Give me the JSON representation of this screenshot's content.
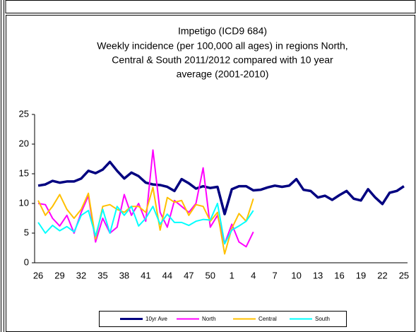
{
  "chart_data": {
    "type": "line",
    "title": "Impetigo (ICD9 684)",
    "subtitle": [
      "Weekly incidence (per 100,000 all ages) in regions North,",
      "Central & South 2011/2012 compared with 10 year",
      "average (2001-2010)"
    ],
    "categories": [
      26,
      null,
      null,
      29,
      null,
      null,
      32,
      null,
      null,
      35,
      null,
      null,
      38,
      null,
      null,
      41,
      null,
      null,
      44,
      null,
      null,
      47,
      null,
      null,
      50,
      null,
      null,
      1,
      null,
      null,
      4,
      null,
      null,
      7,
      null,
      null,
      10,
      null,
      null,
      13,
      null,
      null,
      16,
      null,
      null,
      19,
      null,
      null,
      22,
      null,
      null,
      25
    ],
    "ylim": [
      0,
      25
    ],
    "yticks": [
      0,
      5,
      10,
      15,
      20,
      25
    ],
    "grid": false,
    "legend": "bottom",
    "series": [
      {
        "name": "10yr Ave",
        "color": "#000080",
        "values": [
          13.0,
          13.2,
          13.8,
          13.5,
          13.7,
          13.7,
          14.2,
          15.5,
          15.1,
          15.7,
          17.0,
          15.5,
          14.2,
          15.2,
          14.6,
          13.5,
          13.2,
          13.1,
          12.8,
          12.1,
          14.1,
          13.4,
          12.5,
          12.9,
          12.6,
          12.8,
          8.2,
          12.4,
          12.9,
          12.9,
          12.2,
          12.3,
          12.7,
          13.0,
          12.8,
          13.0,
          14.1,
          12.3,
          12.1,
          11.0,
          11.3,
          10.6,
          11.4,
          12.1,
          10.8,
          10.5,
          12.4,
          11.0,
          9.9,
          11.8,
          12.1,
          12.9
        ]
      },
      {
        "name": "North",
        "color": "#ff00ff",
        "values": [
          10.0,
          9.8,
          7.5,
          6.2,
          8.0,
          5.0,
          8.5,
          11.3,
          3.5,
          7.5,
          5.0,
          6.0,
          11.5,
          8.0,
          10.0,
          7.0,
          19.0,
          8.5,
          6.0,
          10.5,
          9.5,
          8.5,
          10.0,
          16.0,
          6.0,
          8.0,
          3.2,
          6.5,
          3.5,
          2.7,
          5.2,
          null,
          null,
          null,
          null,
          null,
          null,
          null,
          null,
          null,
          null,
          null,
          null,
          null,
          null,
          null,
          null,
          null,
          null,
          null,
          null,
          null
        ]
      },
      {
        "name": "Central",
        "color": "#ffc000",
        "values": [
          10.5,
          8.0,
          9.5,
          11.5,
          9.0,
          7.5,
          9.0,
          11.7,
          4.0,
          9.5,
          9.8,
          9.0,
          8.5,
          9.5,
          9.5,
          8.5,
          12.7,
          5.5,
          11.0,
          10.2,
          10.5,
          8.0,
          9.8,
          9.5,
          7.0,
          8.5,
          1.5,
          5.8,
          8.3,
          7.0,
          10.8,
          null,
          null,
          null,
          null,
          null,
          null,
          null,
          null,
          null,
          null,
          null,
          null,
          null,
          null,
          null,
          null,
          null,
          null,
          null,
          null,
          null
        ]
      },
      {
        "name": "South",
        "color": "#00ffff",
        "values": [
          6.8,
          5.0,
          6.3,
          5.4,
          6.1,
          5.2,
          8.0,
          8.8,
          4.5,
          9.0,
          5.0,
          9.5,
          8.0,
          9.5,
          6.2,
          7.5,
          9.5,
          6.5,
          8.2,
          6.8,
          6.8,
          6.3,
          7.0,
          7.3,
          7.2,
          10.0,
          3.2,
          5.5,
          6.2,
          7.0,
          8.8,
          null,
          null,
          null,
          null,
          null,
          null,
          null,
          null,
          null,
          null,
          null,
          null,
          null,
          null,
          null,
          null,
          null,
          null,
          null,
          null,
          null
        ]
      }
    ]
  }
}
